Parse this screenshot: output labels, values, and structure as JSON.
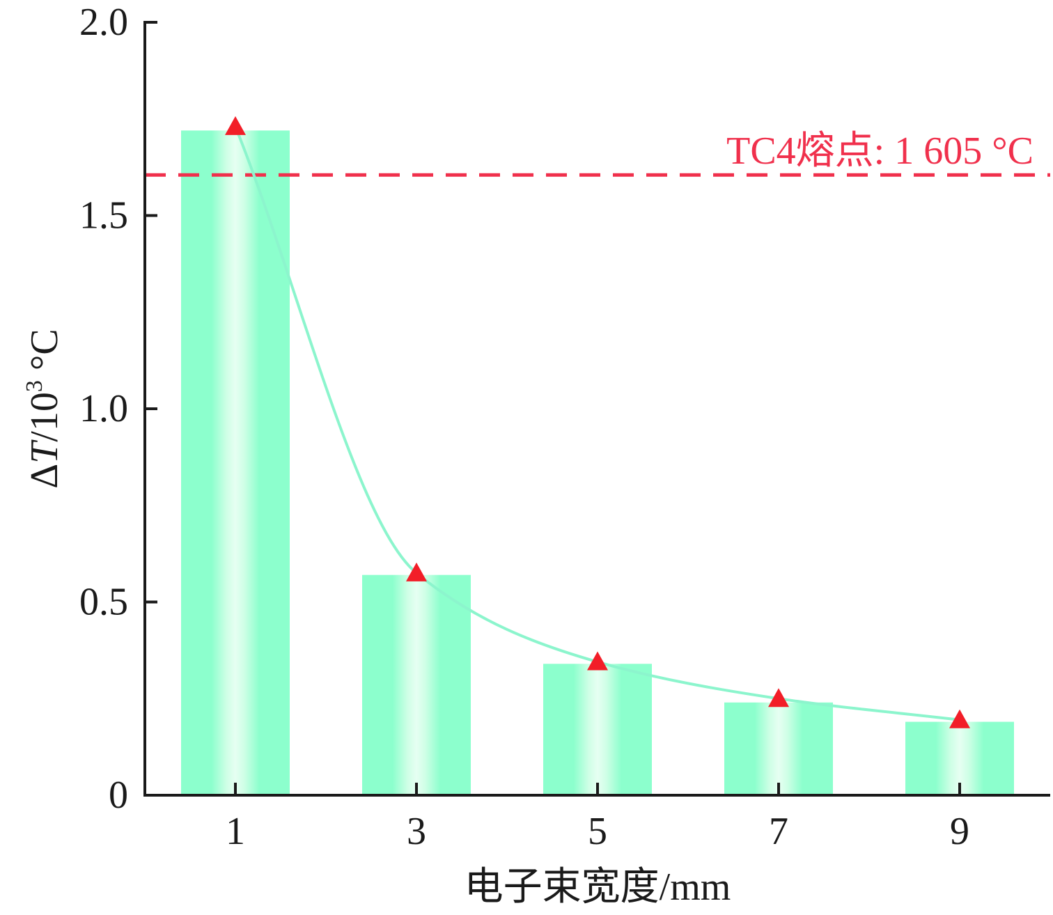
{
  "chart_data": {
    "type": "bar",
    "categories": [
      "1",
      "3",
      "5",
      "7",
      "9"
    ],
    "series": [
      {
        "values": [
          1.72,
          0.57,
          0.34,
          0.24,
          0.19
        ]
      }
    ],
    "markers": [
      1.73,
      0.575,
      0.345,
      0.25,
      0.195
    ],
    "xlabel": "电子束宽度/mm",
    "ylabel": {
      "delta": "Δ",
      "var": "T",
      "unit_prefix": "/10",
      "exponent": "3",
      "unit_suffix": " °C"
    },
    "ylim": [
      0,
      2.0
    ],
    "yticks": [
      "0",
      "0.5",
      "1.0",
      "1.5",
      "2.0"
    ],
    "yticks_values": [
      0,
      0.5,
      1.0,
      1.5,
      2.0
    ],
    "reference_line": {
      "value": 1.605,
      "label": "TC4熔点: 1 605 °C",
      "color": "#f0304c",
      "style": "dashed"
    },
    "grid": false,
    "colors": {
      "bar": "#8cffcd",
      "bar_highlight": "#e6fff2",
      "line": "#8cf5cd",
      "marker": "#f21e28"
    }
  }
}
